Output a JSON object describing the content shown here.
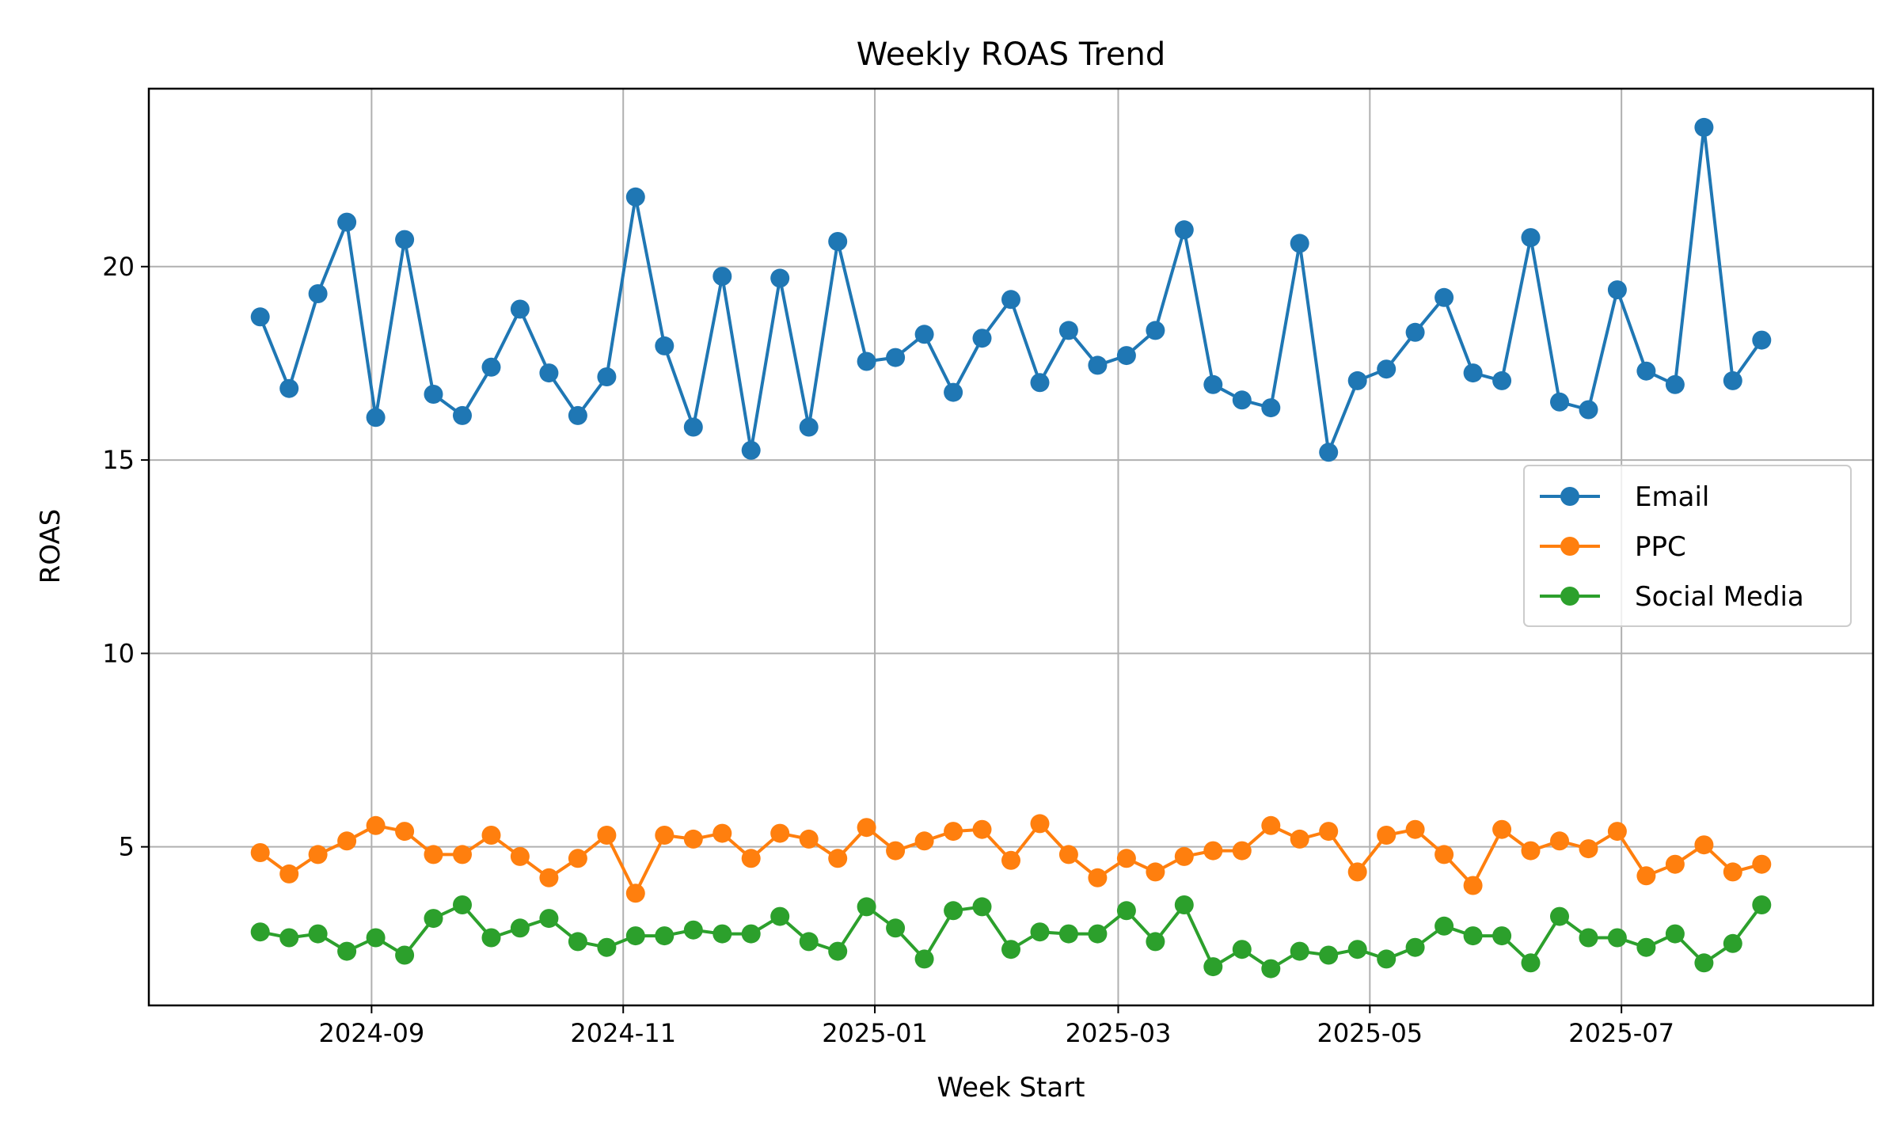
{
  "chart_data": {
    "type": "line",
    "title": "Weekly ROAS Trend",
    "xlabel": "Week Start",
    "ylabel": "ROAS",
    "x_start": "2024-08-05",
    "x_step_days": 7,
    "x_ticks": [
      "2024-09",
      "2024-11",
      "2025-01",
      "2025-03",
      "2025-05",
      "2025-07"
    ],
    "xlim": [
      "2024-07-09",
      "2025-08-31"
    ],
    "y_ticks": [
      5,
      10,
      15,
      20
    ],
    "ylim": [
      0.9,
      24.6
    ],
    "grid": true,
    "legend_position": "center-right",
    "marker": "circle",
    "series": [
      {
        "name": "Email",
        "color": "#1f77b4",
        "values": [
          18.7,
          16.85,
          19.3,
          21.15,
          16.1,
          20.7,
          16.7,
          16.15,
          17.4,
          18.9,
          17.25,
          16.15,
          17.15,
          21.8,
          17.95,
          15.85,
          19.75,
          15.25,
          19.7,
          15.85,
          20.65,
          17.55,
          17.65,
          18.25,
          16.75,
          18.15,
          19.15,
          17.0,
          18.35,
          17.45,
          17.7,
          18.35,
          20.95,
          16.95,
          16.55,
          16.35,
          20.6,
          15.2,
          17.05,
          17.35,
          18.3,
          19.2,
          17.25,
          17.05,
          20.75,
          16.5,
          16.3,
          19.4,
          17.3,
          16.95,
          23.6,
          17.05,
          18.1
        ]
      },
      {
        "name": "PPC",
        "color": "#ff7f0e",
        "values": [
          4.85,
          4.3,
          4.8,
          5.15,
          5.55,
          5.4,
          4.8,
          4.8,
          5.3,
          4.75,
          4.2,
          4.7,
          5.3,
          3.8,
          5.3,
          5.2,
          5.35,
          4.7,
          5.35,
          5.2,
          4.7,
          5.5,
          4.9,
          5.15,
          5.4,
          5.45,
          4.65,
          5.6,
          4.8,
          4.2,
          4.7,
          4.35,
          4.75,
          4.9,
          4.9,
          5.55,
          5.2,
          5.4,
          4.35,
          5.3,
          5.45,
          4.8,
          4.0,
          5.45,
          4.9,
          5.15,
          4.95,
          5.4,
          4.25,
          4.55,
          5.05,
          4.35,
          4.55
        ]
      },
      {
        "name": "Social Media",
        "color": "#2ca02c",
        "values": [
          2.8,
          2.65,
          2.75,
          2.3,
          2.65,
          2.2,
          3.15,
          3.5,
          2.65,
          2.9,
          3.15,
          2.55,
          2.4,
          2.7,
          2.7,
          2.85,
          2.75,
          2.75,
          3.2,
          2.55,
          2.3,
          3.45,
          2.9,
          2.1,
          3.35,
          3.45,
          2.35,
          2.8,
          2.75,
          2.75,
          3.35,
          2.55,
          3.5,
          1.9,
          2.35,
          1.85,
          2.3,
          2.2,
          2.35,
          2.1,
          2.4,
          2.95,
          2.7,
          2.7,
          2.0,
          3.2,
          2.65,
          2.65,
          2.4,
          2.75,
          2.0,
          2.5,
          3.5
        ]
      }
    ]
  }
}
